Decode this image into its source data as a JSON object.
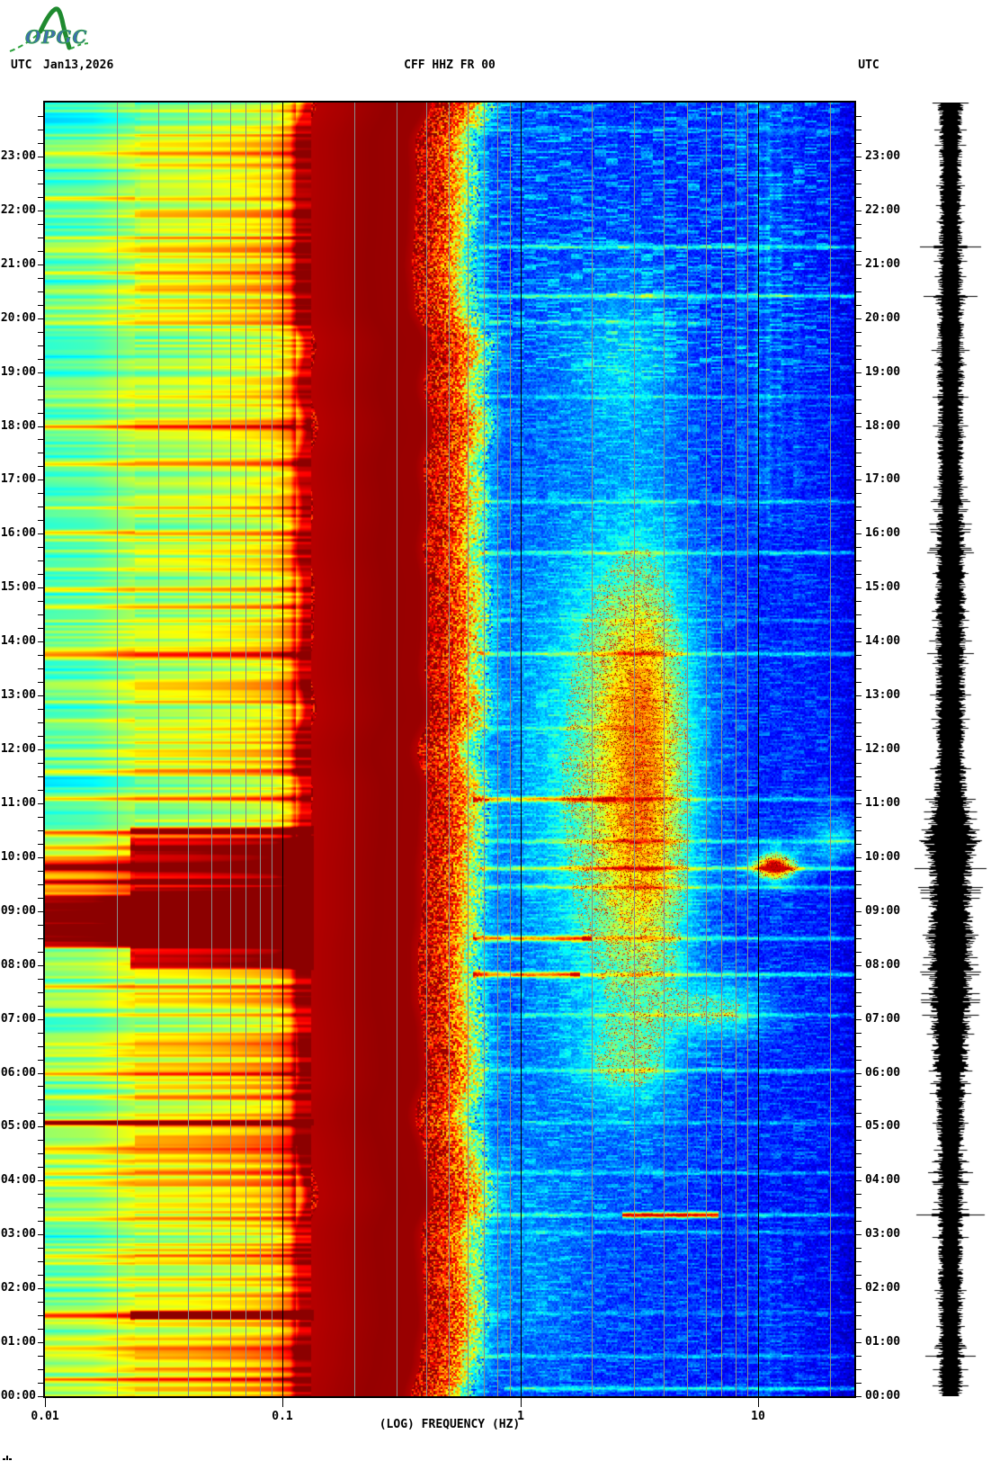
{
  "header": {
    "utc_left": "UTC",
    "date": "Jan13,2026",
    "title": "CFF HHZ FR 00",
    "utc_right": "UTC"
  },
  "logo": {
    "text": "OPGC",
    "green": "#1f8a2f",
    "blue": "#3f6fae"
  },
  "axes": {
    "x_label": "(LOG) FREQUENCY (HZ)",
    "x_ticks": [
      {
        "f": 0.01,
        "label": "0.01"
      },
      {
        "f": 0.1,
        "label": "0.1"
      },
      {
        "f": 1,
        "label": "1"
      },
      {
        "f": 10,
        "label": "10"
      }
    ],
    "hour_labels": [
      "00:00",
      "01:00",
      "02:00",
      "03:00",
      "04:00",
      "05:00",
      "06:00",
      "07:00",
      "08:00",
      "09:00",
      "10:00",
      "11:00",
      "12:00",
      "13:00",
      "14:00",
      "15:00",
      "16:00",
      "17:00",
      "18:00",
      "19:00",
      "20:00",
      "21:00",
      "22:00",
      "23:00"
    ],
    "grid_color": "#8c8c8c",
    "decade_line_color": "#000000",
    "time_axis": {
      "bottom": "00:00",
      "top": "24:00",
      "tick_interval_min": 15,
      "label_interval_min": 60
    }
  },
  "chart_data": {
    "type": "heatmap",
    "title": "CFF HHZ FR 00",
    "date": "Jan13,2026",
    "xlabel": "(LOG) FREQUENCY (HZ)",
    "x_scale": "log10",
    "x_range_hz": [
      0.01,
      25
    ],
    "x_decade_ticks": [
      0.01,
      0.1,
      1,
      10
    ],
    "y_axis": "time UTC, 00:00 at bottom to 24:00 at top, labelled hourly both sides",
    "description": "24-hour seismic spectrogram (jet colormap) with helicorder amplitude trace at right; low-frequency streaked band below 0.1 Hz, saturated dark-red microseism band 0.12-0.4 Hz, speckled transition to blue background above 0.6 Hz, diffuse 2-5 Hz tremor blob 06:00-19:00 with red speckle core, broadband event lines, saturation block 08:20-09:20",
    "colormap_stops": [
      [
        0,
        "#000090"
      ],
      [
        0.125,
        "#0000ff"
      ],
      [
        0.375,
        "#00ffff"
      ],
      [
        0.625,
        "#ffff00"
      ],
      [
        0.875,
        "#ff0000"
      ],
      [
        1,
        "#8c0000"
      ]
    ],
    "profile": [
      [
        -2.0,
        0.46
      ],
      [
        -1.8,
        0.48
      ],
      [
        -1.62,
        0.555
      ],
      [
        -1.38,
        0.575
      ],
      [
        -1.18,
        0.61
      ],
      [
        -1.04,
        0.65
      ],
      [
        -0.97,
        0.73
      ],
      [
        -0.94,
        0.95
      ],
      [
        -0.6,
        0.99
      ],
      [
        -0.45,
        0.985
      ],
      [
        -0.35,
        0.9
      ],
      [
        -0.27,
        0.78
      ],
      [
        -0.225,
        0.62
      ],
      [
        -0.19,
        0.46
      ],
      [
        -0.15,
        0.31
      ],
      [
        -0.1,
        0.22
      ],
      [
        -0.02,
        0.18
      ],
      [
        0.3,
        0.165
      ],
      [
        0.7,
        0.155
      ],
      [
        1.1,
        0.145
      ],
      [
        1.3,
        0.13
      ],
      [
        1.45,
        0.105
      ]
    ],
    "left_decorrelate_below_logf": -1.62,
    "render": {
      "edge_amp": 0.05,
      "transition_speckle": 0.17,
      "speckle_amp": 0.05,
      "dash_amp": 0.1,
      "dash_amp_evening": 0.16
    },
    "left_events": [
      [
        23.07,
        0.15
      ],
      [
        22.23,
        0.2
      ],
      [
        21.5,
        0.12
      ],
      [
        20.85,
        0.16
      ],
      [
        20.5,
        0.14
      ],
      [
        19.93,
        0.14
      ],
      [
        18.55,
        0.12
      ],
      [
        18.0,
        0.18
      ],
      [
        17.3,
        0.15
      ],
      [
        16.03,
        0.22
      ],
      [
        15.35,
        0.18
      ],
      [
        14.98,
        0.12
      ],
      [
        14.65,
        0.15
      ],
      [
        13.78,
        0.28,
        2.5
      ],
      [
        12.9,
        0.1
      ],
      [
        12.55,
        0.12
      ],
      [
        11.6,
        0.16
      ],
      [
        11.1,
        0.15
      ],
      [
        10.45,
        0.3,
        2.5
      ],
      [
        10.18,
        0.26
      ],
      [
        9.83,
        0.34,
        2.5
      ],
      [
        9.55,
        0.3
      ],
      [
        9.35,
        0.25
      ],
      [
        7.6,
        0.22
      ],
      [
        7.08,
        0.18
      ],
      [
        6.55,
        0.12
      ],
      [
        6.0,
        0.25,
        2.2
      ],
      [
        5.55,
        0.12
      ],
      [
        5.08,
        0.38,
        2.4
      ],
      [
        4.6,
        0.16
      ],
      [
        4.15,
        0.12
      ],
      [
        3.3,
        0.16
      ],
      [
        2.6,
        0.14
      ],
      [
        2.2,
        0.1
      ],
      [
        1.5,
        0.3,
        2.4
      ],
      [
        0.9,
        0.12
      ],
      [
        0.33,
        0.2
      ]
    ],
    "blocks": [
      {
        "utc": "08:20-09:20",
        "t0": 8.3,
        "t1": 9.33,
        "amp": 0.55,
        "lf0": -2.05,
        "lf1": -0.87
      },
      {
        "utc": "07:55-10:25",
        "t0": 7.9,
        "t1": 10.4,
        "amp": 0.3,
        "lf0": -1.64,
        "lf1": -0.87
      },
      {
        "utc": "09:20-10:00",
        "t0": 9.33,
        "t1": 10.05,
        "amp": 0.22,
        "lf0": -2.05,
        "lf1": -1.64
      },
      {
        "utc": "01:25-01:35",
        "t0": 1.4,
        "t1": 1.6,
        "amp": 0.42,
        "lf0": -1.64,
        "lf1": -0.87
      },
      {
        "utc": "10:25-10:35",
        "t0": 10.42,
        "t1": 10.58,
        "amp": 0.38,
        "lf0": -1.64,
        "lf1": -0.87
      },
      {
        "utc": "05:01-05:08",
        "t0": 5.02,
        "t1": 5.14,
        "amp": 0.3,
        "lf0": -2.05,
        "lf1": -0.87
      }
    ],
    "right_events": [
      [
        23.5,
        0.7,
        25,
        0.08
      ],
      [
        21.33,
        0.7,
        25,
        0.2
      ],
      [
        20.42,
        0.7,
        25,
        0.24
      ],
      [
        19.93,
        0.7,
        6,
        0.12
      ],
      [
        18.55,
        0.7,
        25,
        0.1
      ],
      [
        16.6,
        0.7,
        25,
        0.13
      ],
      [
        15.65,
        0.7,
        25,
        0.17
      ],
      [
        14.4,
        0.7,
        25,
        0.08
      ],
      [
        13.78,
        0.7,
        25,
        0.19
      ],
      [
        12.4,
        0.7,
        3,
        0.1
      ],
      [
        11.08,
        0.65,
        2.4,
        0.42,
        2.0
      ],
      [
        11.08,
        2.4,
        25,
        0.16
      ],
      [
        10.3,
        0.7,
        25,
        0.15
      ],
      [
        9.8,
        0.7,
        25,
        0.26
      ],
      [
        9.45,
        0.7,
        25,
        0.19
      ],
      [
        8.5,
        0.65,
        1.9,
        0.48,
        2.2
      ],
      [
        8.5,
        1.9,
        25,
        0.2
      ],
      [
        7.83,
        0.65,
        1.7,
        0.52,
        2.2
      ],
      [
        7.83,
        1.7,
        25,
        0.22
      ],
      [
        7.08,
        0.7,
        25,
        0.13
      ],
      [
        6.05,
        0.7,
        25,
        0.16
      ],
      [
        5.08,
        0.7,
        25,
        0.1
      ],
      [
        4.15,
        0.7,
        25,
        0.12
      ],
      [
        3.37,
        2.8,
        6.5,
        0.6,
        2.2
      ],
      [
        3.37,
        0.7,
        25,
        0.16
      ],
      [
        3.05,
        0.7,
        25,
        0.1
      ],
      [
        1.55,
        0.7,
        25,
        0.07
      ],
      [
        0.75,
        0.7,
        25,
        0.12
      ],
      [
        0.15,
        0.9,
        25,
        0.2
      ]
    ],
    "blobs": [
      {
        "name": "tremor-main",
        "lf": 0.5,
        "sl": 0.3,
        "sr": 0.17,
        "t": 11.4,
        "st": 3.4,
        "amp": 0.34
      },
      {
        "name": "tremor-core",
        "lf": 0.52,
        "sl": 0.14,
        "sr": 0.12,
        "t": 10.8,
        "st": 2.4,
        "amp": 0.22
      },
      {
        "name": "tremor-core2",
        "lf": 0.5,
        "sl": 0.12,
        "sr": 0.1,
        "t": 13.6,
        "st": 1.2,
        "amp": 0.12
      },
      {
        "name": "upper-faint",
        "lf": 0.45,
        "sl": 0.2,
        "sr": 0.15,
        "t": 19.3,
        "st": 1.1,
        "amp": 0.13
      },
      {
        "name": "red-spot-12hz-0950",
        "lf": 1.07,
        "sl": 0.05,
        "sr": 0.05,
        "t": 9.82,
        "st": 0.13,
        "amp": 0.62
      },
      {
        "name": "red-spot-halo",
        "lf": 1.07,
        "sl": 0.1,
        "sr": 0.09,
        "t": 9.85,
        "st": 0.3,
        "amp": 0.18
      },
      {
        "name": "cyan-patch-20hz",
        "lf": 1.33,
        "sl": 0.09,
        "sr": 0.09,
        "t": 10.35,
        "st": 0.3,
        "amp": 0.2
      },
      {
        "name": "patch-7hz-0710",
        "lf": 0.86,
        "sl": 0.16,
        "sr": 0.14,
        "t": 7.15,
        "st": 0.38,
        "amp": 0.22
      },
      {
        "name": "morning-blob",
        "lf": 0.45,
        "sl": 0.15,
        "sr": 0.12,
        "t": 6.2,
        "st": 0.5,
        "amp": 0.15
      },
      {
        "name": "low-haze-night",
        "lf": 0.05,
        "sl": 0.2,
        "sr": 0.16,
        "t": 2.8,
        "st": 1.7,
        "amp": 0.07
      }
    ],
    "dot_speckle": {
      "threshold": 0.2,
      "prob": 0.15,
      "amp": 0.5
    },
    "vstreaks": [
      [
        0.93,
        0.07
      ],
      [
        1.0,
        0.1
      ],
      [
        1.045,
        0.12
      ],
      [
        1.09,
        0.08
      ],
      [
        1.16,
        0.06
      ]
    ],
    "waveform": {
      "color": "#000000",
      "envelope": [
        [
          0,
          12
        ],
        [
          0.8,
          12
        ],
        [
          1.5,
          12
        ],
        [
          2.5,
          12.5
        ],
        [
          3.2,
          13
        ],
        [
          4,
          13
        ],
        [
          5,
          14
        ],
        [
          5.7,
          15
        ],
        [
          6.2,
          18
        ],
        [
          7,
          21
        ],
        [
          7.8,
          22
        ],
        [
          8.4,
          24
        ],
        [
          9,
          22
        ],
        [
          9.6,
          21
        ],
        [
          10,
          24
        ],
        [
          10.35,
          27
        ],
        [
          10.7,
          22
        ],
        [
          11.2,
          17
        ],
        [
          12,
          15
        ],
        [
          13,
          15
        ],
        [
          14,
          15
        ],
        [
          15,
          15
        ],
        [
          16,
          15
        ],
        [
          16.6,
          13
        ],
        [
          17.5,
          13
        ],
        [
          18.5,
          13
        ],
        [
          19.3,
          14
        ],
        [
          20,
          13
        ],
        [
          21,
          12
        ],
        [
          22,
          11
        ],
        [
          23,
          11.5
        ],
        [
          24,
          13
        ]
      ],
      "spikes": [
        [
          0.2,
          20
        ],
        [
          0.75,
          28
        ],
        [
          3.37,
          38
        ],
        [
          4.15,
          25
        ],
        [
          5.08,
          20
        ],
        [
          6.05,
          24
        ],
        [
          7.83,
          32
        ],
        [
          8.5,
          28
        ],
        [
          9.45,
          36
        ],
        [
          9.8,
          40
        ],
        [
          10.3,
          33
        ],
        [
          11.08,
          28
        ],
        [
          12.4,
          20
        ],
        [
          13.78,
          26
        ],
        [
          15.65,
          26
        ],
        [
          16.6,
          22
        ],
        [
          18.55,
          20
        ],
        [
          20.42,
          30
        ],
        [
          21.33,
          34
        ],
        [
          23.5,
          18
        ]
      ]
    }
  }
}
